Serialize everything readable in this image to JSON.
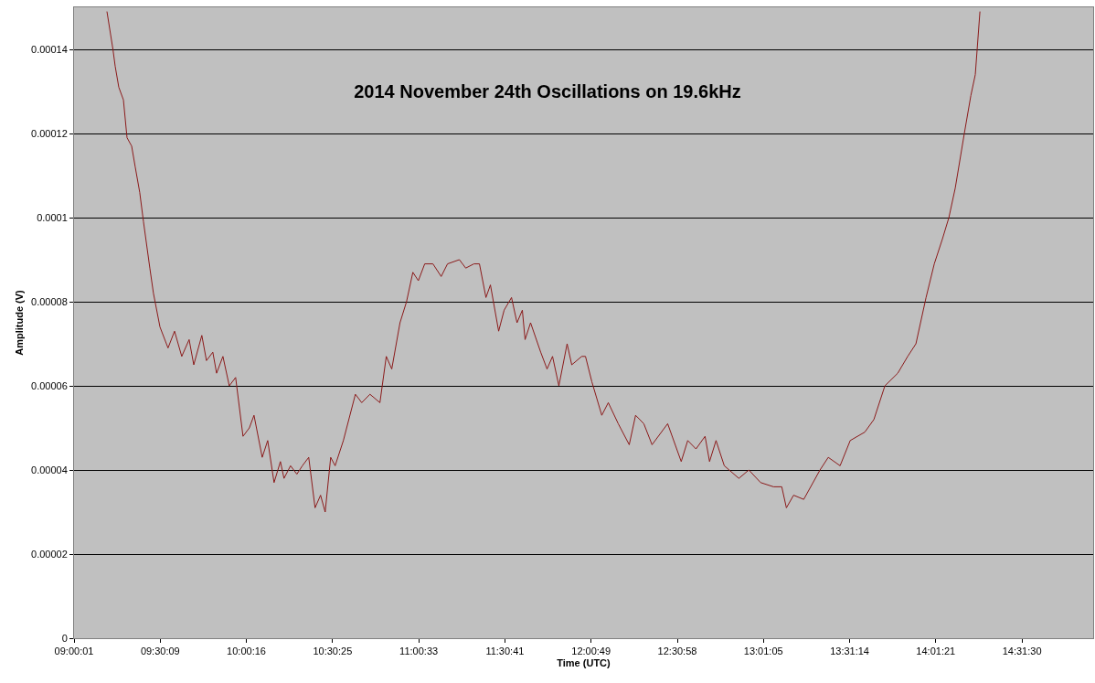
{
  "chart_data": {
    "type": "line",
    "title": "2014 November 24th Oscillations on 19.6kHz",
    "xlabel": "Time (UTC)",
    "ylabel": "Amplitude (V)",
    "x": [
      9.192,
      9.227,
      9.24,
      9.261,
      9.288,
      9.309,
      9.336,
      9.357,
      9.383,
      9.405,
      9.442,
      9.463,
      9.501,
      9.548,
      9.586,
      9.628,
      9.671,
      9.698,
      9.745,
      9.772,
      9.809,
      9.831,
      9.868,
      9.905,
      9.942,
      9.985,
      10.022,
      10.049,
      10.097,
      10.129,
      10.166,
      10.203,
      10.224,
      10.262,
      10.299,
      10.331,
      10.368,
      10.405,
      10.437,
      10.464,
      10.496,
      10.522,
      10.57,
      10.64,
      10.677,
      10.725,
      10.783,
      10.82,
      10.852,
      10.9,
      10.938,
      10.975,
      11.007,
      11.044,
      11.092,
      11.14,
      11.177,
      11.246,
      11.283,
      11.331,
      11.363,
      11.401,
      11.427,
      11.475,
      11.507,
      11.55,
      11.582,
      11.613,
      11.629,
      11.661,
      11.72,
      11.757,
      11.789,
      11.826,
      11.874,
      11.901,
      11.959,
      11.981,
      12.018,
      12.076,
      12.114,
      12.172,
      12.236,
      12.273,
      12.321,
      12.369,
      12.46,
      12.539,
      12.577,
      12.625,
      12.678,
      12.704,
      12.742,
      12.79,
      12.875,
      12.933,
      13.002,
      13.077,
      13.125,
      13.152,
      13.194,
      13.253,
      13.348,
      13.396,
      13.465,
      13.524,
      13.609,
      13.662,
      13.726,
      13.801,
      13.859,
      13.907,
      13.966,
      14.014,
      14.062,
      14.099,
      14.136,
      14.189,
      14.227,
      14.253,
      14.28
    ],
    "series": [
      {
        "color": "#8b1a1a",
        "values": [
          0.000149,
          0.00014,
          0.000136,
          0.000131,
          0.000128,
          0.000119,
          0.000117,
          0.000112,
          0.000106,
          9.9e-05,
          8.8e-05,
          8.2e-05,
          7.4e-05,
          6.9e-05,
          7.3e-05,
          6.7e-05,
          7.1e-05,
          6.5e-05,
          7.2e-05,
          6.6e-05,
          6.8e-05,
          6.3e-05,
          6.7e-05,
          6e-05,
          6.2e-05,
          4.8e-05,
          5e-05,
          5.3e-05,
          4.3e-05,
          4.7e-05,
          3.7e-05,
          4.2e-05,
          3.8e-05,
          4.1e-05,
          3.9e-05,
          4.1e-05,
          4.3e-05,
          3.1e-05,
          3.4e-05,
          3e-05,
          4.3e-05,
          4.1e-05,
          4.7e-05,
          5.8e-05,
          5.6e-05,
          5.8e-05,
          5.6e-05,
          6.7e-05,
          6.4e-05,
          7.5e-05,
          8e-05,
          8.7e-05,
          8.5e-05,
          8.9e-05,
          8.9e-05,
          8.6e-05,
          8.9e-05,
          9e-05,
          8.8e-05,
          8.9e-05,
          8.9e-05,
          8.1e-05,
          8.4e-05,
          7.3e-05,
          7.8e-05,
          8.1e-05,
          7.5e-05,
          7.8e-05,
          7.1e-05,
          7.5e-05,
          6.8e-05,
          6.4e-05,
          6.7e-05,
          6e-05,
          7e-05,
          6.5e-05,
          6.7e-05,
          6.7e-05,
          6.1e-05,
          5.3e-05,
          5.6e-05,
          5.1e-05,
          4.6e-05,
          5.3e-05,
          5.1e-05,
          4.6e-05,
          5.1e-05,
          4.2e-05,
          4.7e-05,
          4.5e-05,
          4.8e-05,
          4.2e-05,
          4.7e-05,
          4.1e-05,
          3.8e-05,
          4e-05,
          3.7e-05,
          3.6e-05,
          3.6e-05,
          3.1e-05,
          3.4e-05,
          3.3e-05,
          4e-05,
          4.3e-05,
          4.1e-05,
          4.7e-05,
          4.9e-05,
          5.2e-05,
          6e-05,
          6.3e-05,
          6.7e-05,
          7e-05,
          8.1e-05,
          8.9e-05,
          9.5e-05,
          0.0001,
          0.000107,
          0.00012,
          0.000129,
          0.000134,
          0.000149
        ]
      }
    ],
    "xlim": [
      9.0002,
      14.94
    ],
    "xticks": [
      {
        "value": 9.000278,
        "label": "09:00:01"
      },
      {
        "value": 9.5025,
        "label": "09:30:09"
      },
      {
        "value": 10.004444,
        "label": "10:00:16"
      },
      {
        "value": 10.506944,
        "label": "10:30:25"
      },
      {
        "value": 11.009167,
        "label": "11:00:33"
      },
      {
        "value": 11.511389,
        "label": "11:30:41"
      },
      {
        "value": 12.013611,
        "label": "12:00:49"
      },
      {
        "value": 12.516111,
        "label": "12:30:58"
      },
      {
        "value": 13.018056,
        "label": "13:01:05"
      },
      {
        "value": 13.520556,
        "label": "13:31:14"
      },
      {
        "value": 14.0225,
        "label": "14:01:21"
      },
      {
        "value": 14.525,
        "label": "14:31:30"
      }
    ],
    "ylim": [
      0,
      0.00015
    ],
    "yticks": [
      {
        "value": 0,
        "label": "0"
      },
      {
        "value": 2e-05,
        "label": "0.00002"
      },
      {
        "value": 4e-05,
        "label": "0.00004"
      },
      {
        "value": 6e-05,
        "label": "0.00006"
      },
      {
        "value": 8e-05,
        "label": "0.00008"
      },
      {
        "value": 0.0001,
        "label": "0.0001"
      },
      {
        "value": 0.00012,
        "label": "0.00012"
      },
      {
        "value": 0.00014,
        "label": "0.00014"
      }
    ],
    "grid": "y",
    "marker": "none",
    "line_style": "solid"
  }
}
